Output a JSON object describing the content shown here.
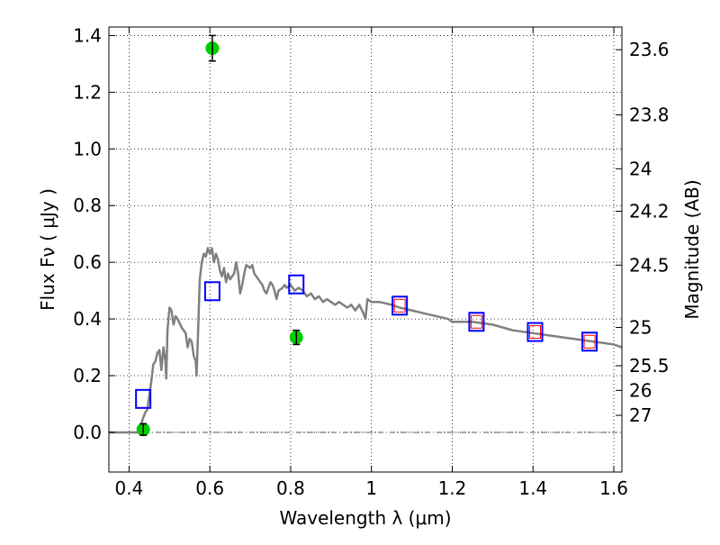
{
  "chart_data": {
    "type": "scatter",
    "xlabel": "Wavelength  λ (μm)",
    "ylabel": "Flux  Fν ( μJy )",
    "y2label": "Magnitude (AB)",
    "xlim": [
      0.35,
      1.62
    ],
    "ylim": [
      -0.14,
      1.43
    ],
    "xticks": [
      0.4,
      0.6,
      0.8,
      1.0,
      1.2,
      1.4,
      1.6
    ],
    "xtick_labels": [
      "0.4",
      "0.6",
      "0.8",
      "1",
      "1.2",
      "1.4",
      "1.6"
    ],
    "yticks": [
      0.0,
      0.2,
      0.4,
      0.6,
      0.8,
      1.0,
      1.2,
      1.4
    ],
    "ytick_labels": [
      "0.0",
      "0.2",
      "0.4",
      "0.6",
      "0.8",
      "1.0",
      "1.2",
      "1.4"
    ],
    "magnitude_ticks": [
      {
        "label": "23.6",
        "flux": 1.35
      },
      {
        "label": "23.8",
        "flux": 1.12
      },
      {
        "label": "24",
        "flux": 0.93
      },
      {
        "label": "24.2",
        "flux": 0.78
      },
      {
        "label": "24.5",
        "flux": 0.59
      },
      {
        "label": "25",
        "flux": 0.37
      },
      {
        "label": "25.5",
        "flux": 0.235
      },
      {
        "label": "26",
        "flux": 0.148
      },
      {
        "label": "27",
        "flux": 0.06
      }
    ],
    "grid": true,
    "zero_line": true,
    "colors": {
      "sed": "#808080",
      "observed": "#00cc00",
      "model_box": "#0000ff",
      "model_inner": "#ff0000",
      "errorbar": "#000000"
    },
    "sed_curve": [
      [
        0.35,
        0.0
      ],
      [
        0.42,
        0.0
      ],
      [
        0.428,
        0.0
      ],
      [
        0.432,
        0.04
      ],
      [
        0.44,
        0.07
      ],
      [
        0.445,
        0.08
      ],
      [
        0.455,
        0.18
      ],
      [
        0.46,
        0.24
      ],
      [
        0.465,
        0.25
      ],
      [
        0.47,
        0.28
      ],
      [
        0.475,
        0.29
      ],
      [
        0.48,
        0.22
      ],
      [
        0.485,
        0.3
      ],
      [
        0.49,
        0.25
      ],
      [
        0.492,
        0.19
      ],
      [
        0.495,
        0.36
      ],
      [
        0.5,
        0.44
      ],
      [
        0.505,
        0.43
      ],
      [
        0.51,
        0.38
      ],
      [
        0.515,
        0.41
      ],
      [
        0.52,
        0.4
      ],
      [
        0.53,
        0.37
      ],
      [
        0.54,
        0.35
      ],
      [
        0.545,
        0.3
      ],
      [
        0.55,
        0.33
      ],
      [
        0.555,
        0.32
      ],
      [
        0.56,
        0.27
      ],
      [
        0.565,
        0.25
      ],
      [
        0.567,
        0.2
      ],
      [
        0.57,
        0.32
      ],
      [
        0.575,
        0.54
      ],
      [
        0.58,
        0.6
      ],
      [
        0.585,
        0.63
      ],
      [
        0.59,
        0.62
      ],
      [
        0.595,
        0.65
      ],
      [
        0.6,
        0.63
      ],
      [
        0.605,
        0.65
      ],
      [
        0.61,
        0.6
      ],
      [
        0.615,
        0.63
      ],
      [
        0.62,
        0.61
      ],
      [
        0.625,
        0.57
      ],
      [
        0.63,
        0.55
      ],
      [
        0.635,
        0.58
      ],
      [
        0.64,
        0.53
      ],
      [
        0.645,
        0.56
      ],
      [
        0.65,
        0.54
      ],
      [
        0.655,
        0.55
      ],
      [
        0.66,
        0.56
      ],
      [
        0.665,
        0.6
      ],
      [
        0.67,
        0.56
      ],
      [
        0.675,
        0.49
      ],
      [
        0.68,
        0.52
      ],
      [
        0.685,
        0.56
      ],
      [
        0.69,
        0.59
      ],
      [
        0.7,
        0.58
      ],
      [
        0.705,
        0.59
      ],
      [
        0.71,
        0.56
      ],
      [
        0.72,
        0.54
      ],
      [
        0.73,
        0.52
      ],
      [
        0.735,
        0.5
      ],
      [
        0.74,
        0.49
      ],
      [
        0.745,
        0.51
      ],
      [
        0.75,
        0.53
      ],
      [
        0.755,
        0.52
      ],
      [
        0.76,
        0.5
      ],
      [
        0.765,
        0.47
      ],
      [
        0.77,
        0.5
      ],
      [
        0.78,
        0.51
      ],
      [
        0.785,
        0.52
      ],
      [
        0.79,
        0.51
      ],
      [
        0.8,
        0.52
      ],
      [
        0.81,
        0.5
      ],
      [
        0.82,
        0.51
      ],
      [
        0.83,
        0.5
      ],
      [
        0.84,
        0.48
      ],
      [
        0.85,
        0.49
      ],
      [
        0.86,
        0.47
      ],
      [
        0.87,
        0.48
      ],
      [
        0.88,
        0.46
      ],
      [
        0.89,
        0.47
      ],
      [
        0.9,
        0.46
      ],
      [
        0.91,
        0.45
      ],
      [
        0.92,
        0.46
      ],
      [
        0.93,
        0.45
      ],
      [
        0.94,
        0.44
      ],
      [
        0.95,
        0.45
      ],
      [
        0.96,
        0.43
      ],
      [
        0.97,
        0.45
      ],
      [
        0.98,
        0.42
      ],
      [
        0.985,
        0.4
      ],
      [
        0.99,
        0.47
      ],
      [
        1.0,
        0.46
      ],
      [
        1.02,
        0.46
      ],
      [
        1.05,
        0.45
      ],
      [
        1.07,
        0.44
      ],
      [
        1.1,
        0.43
      ],
      [
        1.13,
        0.42
      ],
      [
        1.16,
        0.41
      ],
      [
        1.19,
        0.4
      ],
      [
        1.2,
        0.39
      ],
      [
        1.22,
        0.39
      ],
      [
        1.25,
        0.39
      ],
      [
        1.3,
        0.38
      ],
      [
        1.35,
        0.36
      ],
      [
        1.4,
        0.35
      ],
      [
        1.45,
        0.34
      ],
      [
        1.5,
        0.33
      ],
      [
        1.55,
        0.32
      ],
      [
        1.6,
        0.31
      ],
      [
        1.62,
        0.3
      ]
    ],
    "observed_points": [
      {
        "x": 0.435,
        "y": 0.01,
        "err": 0.02
      },
      {
        "x": 0.606,
        "y": 1.355,
        "err": 0.045
      },
      {
        "x": 0.814,
        "y": 0.335,
        "err": 0.025
      }
    ],
    "model_boxes": [
      {
        "x": 0.435,
        "y": 0.118
      },
      {
        "x": 0.606,
        "y": 0.498
      },
      {
        "x": 0.814,
        "y": 0.522
      },
      {
        "x": 1.07,
        "y": 0.447
      },
      {
        "x": 1.26,
        "y": 0.39
      },
      {
        "x": 1.405,
        "y": 0.354
      },
      {
        "x": 1.54,
        "y": 0.32
      }
    ],
    "model_inner": [
      {
        "x": 1.07,
        "y": 0.447
      },
      {
        "x": 1.26,
        "y": 0.39
      },
      {
        "x": 1.405,
        "y": 0.354
      },
      {
        "x": 1.54,
        "y": 0.32
      }
    ]
  }
}
